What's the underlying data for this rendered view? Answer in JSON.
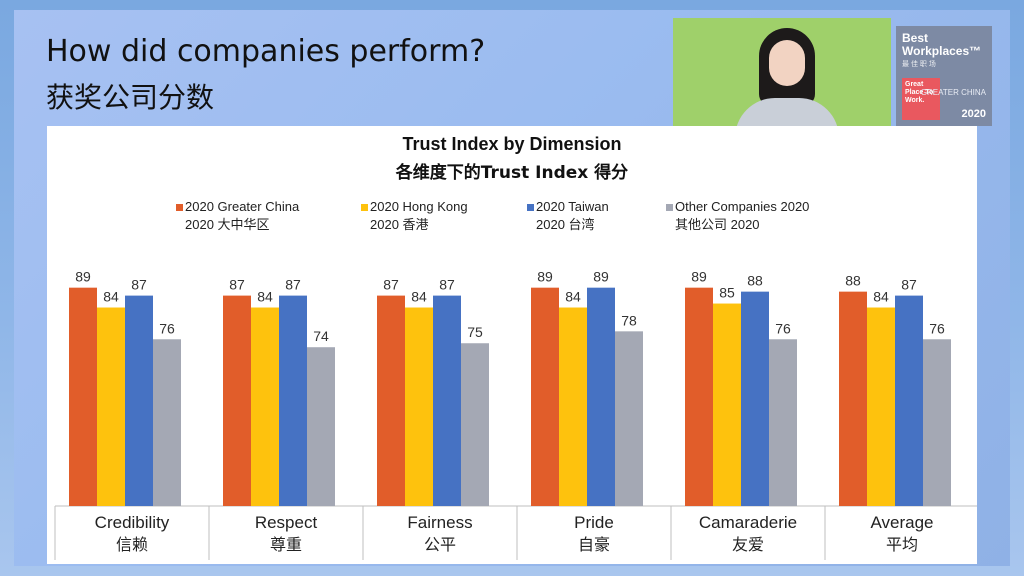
{
  "slide": {
    "title_en": "How did companies perform?",
    "title_cn": "获奖公司分数"
  },
  "logo": {
    "line1": "Best",
    "line2": "Workplaces™",
    "sub": "最 佳 职 场",
    "gptw": "Great Place To Work.",
    "region": "GREATER CHINA",
    "year": "2020",
    "gptw_color": "#e9585f"
  },
  "chart_data": {
    "type": "bar",
    "title": "Trust Index by Dimension",
    "subtitle": "各维度下的Trust Index 得分",
    "categories": [
      {
        "en": "Credibility",
        "cn": "信赖"
      },
      {
        "en": "Respect",
        "cn": "尊重"
      },
      {
        "en": "Fairness",
        "cn": "公平"
      },
      {
        "en": "Pride",
        "cn": "自豪"
      },
      {
        "en": "Camaraderie",
        "cn": "友爱"
      },
      {
        "en": "Average",
        "cn": "平均"
      }
    ],
    "series": [
      {
        "name": "2020 Greater China",
        "name_cn": "2020 大中华区",
        "color": "#e15d2a",
        "values": [
          89,
          87,
          87,
          89,
          89,
          88
        ]
      },
      {
        "name": "2020 Hong Kong",
        "name_cn": "2020 香港",
        "color": "#fec20d",
        "values": [
          84,
          84,
          84,
          84,
          85,
          84
        ]
      },
      {
        "name": "2020 Taiwan",
        "name_cn": "2020 台湾",
        "color": "#4672c3",
        "values": [
          87,
          87,
          87,
          89,
          88,
          87
        ]
      },
      {
        "name": "Other Companies 2020",
        "name_cn": "其他公司 2020",
        "color": "#a4a8b4",
        "values": [
          76,
          74,
          75,
          78,
          76,
          76
        ]
      }
    ],
    "ylim": [
      0,
      100
    ],
    "grid": false,
    "legend_position": "top"
  }
}
